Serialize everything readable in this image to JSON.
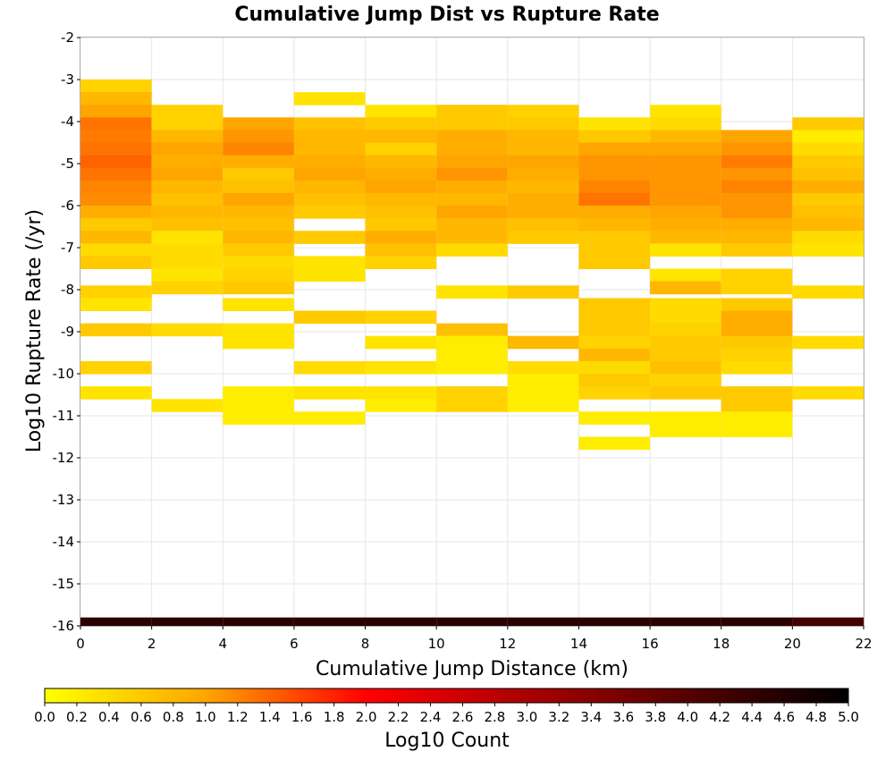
{
  "chart_data": {
    "type": "heatmap",
    "title": "Cumulative Jump Dist vs Rupture Rate",
    "xlabel": "Cumulative Jump Distance (km)",
    "ylabel": "Log10 Rupture Rate (/yr)",
    "xlim": [
      0,
      22
    ],
    "ylim": [
      -16,
      -2
    ],
    "x_ticks": [
      "0",
      "2",
      "4",
      "6",
      "8",
      "10",
      "12",
      "14",
      "16",
      "18",
      "20",
      "22"
    ],
    "y_ticks": [
      "-2",
      "-3",
      "-4",
      "-5",
      "-6",
      "-7",
      "-8",
      "-9",
      "-10",
      "-11",
      "-12",
      "-13",
      "-14",
      "-15",
      "-16"
    ],
    "x_bin_width": 2,
    "y_bin_height": 0.3,
    "grid": true,
    "colorbar": {
      "label": "Log10 Count",
      "range": [
        0,
        5
      ],
      "ticks": [
        "0.0",
        "0.2",
        "0.4",
        "0.6",
        "0.8",
        "1.0",
        "1.2",
        "1.4",
        "1.6",
        "1.8",
        "2.0",
        "2.2",
        "2.4",
        "2.6",
        "2.8",
        "3.0",
        "3.2",
        "3.4",
        "3.6",
        "3.8",
        "4.0",
        "4.2",
        "4.4",
        "4.6",
        "4.8",
        "5.0"
      ],
      "colormap": [
        "#ffff00",
        "#ffa500",
        "#ff0000",
        "#000000"
      ]
    },
    "cells": [
      {
        "x": 0,
        "y": -3.15,
        "v": 0.5
      },
      {
        "x": 0,
        "y": -3.45,
        "v": 0.8
      },
      {
        "x": 0,
        "y": -3.75,
        "v": 1.0
      },
      {
        "x": 0,
        "y": -4.05,
        "v": 1.3
      },
      {
        "x": 0,
        "y": -4.35,
        "v": 1.25
      },
      {
        "x": 0,
        "y": -4.65,
        "v": 1.3
      },
      {
        "x": 0,
        "y": -4.95,
        "v": 1.4
      },
      {
        "x": 0,
        "y": -5.25,
        "v": 1.3
      },
      {
        "x": 0,
        "y": -5.55,
        "v": 1.2
      },
      {
        "x": 0,
        "y": -5.85,
        "v": 1.15
      },
      {
        "x": 0,
        "y": -6.15,
        "v": 0.9
      },
      {
        "x": 0,
        "y": -6.45,
        "v": 0.6
      },
      {
        "x": 0,
        "y": -6.75,
        "v": 0.8
      },
      {
        "x": 0,
        "y": -7.05,
        "v": 0.4
      },
      {
        "x": 0,
        "y": -7.35,
        "v": 0.6
      },
      {
        "x": 0,
        "y": -8.05,
        "v": 0.5
      },
      {
        "x": 0,
        "y": -8.35,
        "v": 0.3
      },
      {
        "x": 0,
        "y": -8.95,
        "v": 0.6
      },
      {
        "x": 0,
        "y": -9.85,
        "v": 0.5
      },
      {
        "x": 0,
        "y": -10.45,
        "v": 0.3
      },
      {
        "x": 2,
        "y": -3.75,
        "v": 0.5
      },
      {
        "x": 2,
        "y": -4.05,
        "v": 0.5
      },
      {
        "x": 2,
        "y": -4.35,
        "v": 0.8
      },
      {
        "x": 2,
        "y": -4.65,
        "v": 1.0
      },
      {
        "x": 2,
        "y": -4.95,
        "v": 0.9
      },
      {
        "x": 2,
        "y": -5.25,
        "v": 1.0
      },
      {
        "x": 2,
        "y": -5.55,
        "v": 0.8
      },
      {
        "x": 2,
        "y": -5.85,
        "v": 0.7
      },
      {
        "x": 2,
        "y": -6.15,
        "v": 0.8
      },
      {
        "x": 2,
        "y": -6.45,
        "v": 0.7
      },
      {
        "x": 2,
        "y": -6.75,
        "v": 0.3
      },
      {
        "x": 2,
        "y": -7.05,
        "v": 0.4
      },
      {
        "x": 2,
        "y": -7.35,
        "v": 0.4
      },
      {
        "x": 2,
        "y": -7.65,
        "v": 0.3
      },
      {
        "x": 2,
        "y": -7.95,
        "v": 0.5
      },
      {
        "x": 2,
        "y": -8.95,
        "v": 0.4
      },
      {
        "x": 2,
        "y": -10.75,
        "v": 0.3
      },
      {
        "x": 4,
        "y": -4.05,
        "v": 1.0
      },
      {
        "x": 4,
        "y": -4.35,
        "v": 1.1
      },
      {
        "x": 4,
        "y": -4.65,
        "v": 1.2
      },
      {
        "x": 4,
        "y": -4.95,
        "v": 0.9
      },
      {
        "x": 4,
        "y": -5.25,
        "v": 0.6
      },
      {
        "x": 4,
        "y": -5.55,
        "v": 0.7
      },
      {
        "x": 4,
        "y": -5.85,
        "v": 1.0
      },
      {
        "x": 4,
        "y": -6.15,
        "v": 0.8
      },
      {
        "x": 4,
        "y": -6.45,
        "v": 0.7
      },
      {
        "x": 4,
        "y": -6.75,
        "v": 0.8
      },
      {
        "x": 4,
        "y": -7.05,
        "v": 0.6
      },
      {
        "x": 4,
        "y": -7.35,
        "v": 0.4
      },
      {
        "x": 4,
        "y": -7.65,
        "v": 0.5
      },
      {
        "x": 4,
        "y": -7.95,
        "v": 0.6
      },
      {
        "x": 4,
        "y": -8.35,
        "v": 0.3
      },
      {
        "x": 4,
        "y": -8.95,
        "v": 0.3
      },
      {
        "x": 4,
        "y": -9.25,
        "v": 0.3
      },
      {
        "x": 4,
        "y": -10.45,
        "v": 0.2
      },
      {
        "x": 4,
        "y": -10.75,
        "v": 0.2
      },
      {
        "x": 4,
        "y": -11.05,
        "v": 0.2
      },
      {
        "x": 6,
        "y": -3.45,
        "v": 0.3
      },
      {
        "x": 6,
        "y": -4.05,
        "v": 0.7
      },
      {
        "x": 6,
        "y": -4.35,
        "v": 0.8
      },
      {
        "x": 6,
        "y": -4.65,
        "v": 0.8
      },
      {
        "x": 6,
        "y": -4.95,
        "v": 0.9
      },
      {
        "x": 6,
        "y": -5.25,
        "v": 1.0
      },
      {
        "x": 6,
        "y": -5.55,
        "v": 0.8
      },
      {
        "x": 6,
        "y": -5.85,
        "v": 0.7
      },
      {
        "x": 6,
        "y": -6.15,
        "v": 0.6
      },
      {
        "x": 6,
        "y": -6.75,
        "v": 0.6
      },
      {
        "x": 6,
        "y": -7.35,
        "v": 0.3
      },
      {
        "x": 6,
        "y": -7.65,
        "v": 0.3
      },
      {
        "x": 6,
        "y": -8.65,
        "v": 0.6
      },
      {
        "x": 6,
        "y": -9.85,
        "v": 0.4
      },
      {
        "x": 6,
        "y": -10.45,
        "v": 0.3
      },
      {
        "x": 6,
        "y": -11.05,
        "v": 0.2
      },
      {
        "x": 8,
        "y": -3.75,
        "v": 0.3
      },
      {
        "x": 8,
        "y": -4.05,
        "v": 0.6
      },
      {
        "x": 8,
        "y": -4.35,
        "v": 0.8
      },
      {
        "x": 8,
        "y": -4.65,
        "v": 0.5
      },
      {
        "x": 8,
        "y": -4.95,
        "v": 0.8
      },
      {
        "x": 8,
        "y": -5.25,
        "v": 0.9
      },
      {
        "x": 8,
        "y": -5.55,
        "v": 1.0
      },
      {
        "x": 8,
        "y": -5.85,
        "v": 0.8
      },
      {
        "x": 8,
        "y": -6.15,
        "v": 0.7
      },
      {
        "x": 8,
        "y": -6.45,
        "v": 0.6
      },
      {
        "x": 8,
        "y": -6.75,
        "v": 0.9
      },
      {
        "x": 8,
        "y": -7.05,
        "v": 0.7
      },
      {
        "x": 8,
        "y": -7.35,
        "v": 0.5
      },
      {
        "x": 8,
        "y": -8.65,
        "v": 0.5
      },
      {
        "x": 8,
        "y": -9.25,
        "v": 0.3
      },
      {
        "x": 8,
        "y": -9.85,
        "v": 0.3
      },
      {
        "x": 8,
        "y": -10.45,
        "v": 0.3
      },
      {
        "x": 8,
        "y": -10.75,
        "v": 0.2
      },
      {
        "x": 10,
        "y": -3.75,
        "v": 0.6
      },
      {
        "x": 10,
        "y": -4.05,
        "v": 0.6
      },
      {
        "x": 10,
        "y": -4.35,
        "v": 0.9
      },
      {
        "x": 10,
        "y": -4.65,
        "v": 0.9
      },
      {
        "x": 10,
        "y": -4.95,
        "v": 1.0
      },
      {
        "x": 10,
        "y": -5.25,
        "v": 1.1
      },
      {
        "x": 10,
        "y": -5.55,
        "v": 0.9
      },
      {
        "x": 10,
        "y": -5.85,
        "v": 0.8
      },
      {
        "x": 10,
        "y": -6.15,
        "v": 1.0
      },
      {
        "x": 10,
        "y": -6.45,
        "v": 0.8
      },
      {
        "x": 10,
        "y": -6.75,
        "v": 0.8
      },
      {
        "x": 10,
        "y": -7.05,
        "v": 0.4
      },
      {
        "x": 10,
        "y": -8.05,
        "v": 0.3
      },
      {
        "x": 10,
        "y": -8.95,
        "v": 0.7
      },
      {
        "x": 10,
        "y": -9.25,
        "v": 0.2
      },
      {
        "x": 10,
        "y": -9.55,
        "v": 0.2
      },
      {
        "x": 10,
        "y": -9.85,
        "v": 0.2
      },
      {
        "x": 10,
        "y": -10.45,
        "v": 0.5
      },
      {
        "x": 10,
        "y": -10.75,
        "v": 0.5
      },
      {
        "x": 12,
        "y": -3.75,
        "v": 0.5
      },
      {
        "x": 12,
        "y": -4.05,
        "v": 0.6
      },
      {
        "x": 12,
        "y": -4.35,
        "v": 0.8
      },
      {
        "x": 12,
        "y": -4.65,
        "v": 0.8
      },
      {
        "x": 12,
        "y": -4.95,
        "v": 1.0
      },
      {
        "x": 12,
        "y": -5.25,
        "v": 0.9
      },
      {
        "x": 12,
        "y": -5.55,
        "v": 0.8
      },
      {
        "x": 12,
        "y": -5.85,
        "v": 0.9
      },
      {
        "x": 12,
        "y": -6.15,
        "v": 0.9
      },
      {
        "x": 12,
        "y": -6.45,
        "v": 0.7
      },
      {
        "x": 12,
        "y": -6.75,
        "v": 0.6
      },
      {
        "x": 12,
        "y": -8.05,
        "v": 0.6
      },
      {
        "x": 12,
        "y": -9.25,
        "v": 0.8
      },
      {
        "x": 12,
        "y": -9.85,
        "v": 0.4
      },
      {
        "x": 12,
        "y": -10.15,
        "v": 0.2
      },
      {
        "x": 12,
        "y": -10.45,
        "v": 0.2
      },
      {
        "x": 12,
        "y": -10.75,
        "v": 0.2
      },
      {
        "x": 14,
        "y": -4.05,
        "v": 0.3
      },
      {
        "x": 14,
        "y": -4.35,
        "v": 0.6
      },
      {
        "x": 14,
        "y": -4.65,
        "v": 1.0
      },
      {
        "x": 14,
        "y": -4.95,
        "v": 1.1
      },
      {
        "x": 14,
        "y": -5.25,
        "v": 1.1
      },
      {
        "x": 14,
        "y": -5.55,
        "v": 1.2
      },
      {
        "x": 14,
        "y": -5.85,
        "v": 1.3
      },
      {
        "x": 14,
        "y": -6.15,
        "v": 0.9
      },
      {
        "x": 14,
        "y": -6.45,
        "v": 0.8
      },
      {
        "x": 14,
        "y": -6.75,
        "v": 0.6
      },
      {
        "x": 14,
        "y": -7.05,
        "v": 0.6
      },
      {
        "x": 14,
        "y": -7.35,
        "v": 0.6
      },
      {
        "x": 14,
        "y": -8.35,
        "v": 0.6
      },
      {
        "x": 14,
        "y": -8.65,
        "v": 0.6
      },
      {
        "x": 14,
        "y": -8.95,
        "v": 0.6
      },
      {
        "x": 14,
        "y": -9.25,
        "v": 0.5
      },
      {
        "x": 14,
        "y": -9.55,
        "v": 0.8
      },
      {
        "x": 14,
        "y": -9.85,
        "v": 0.4
      },
      {
        "x": 14,
        "y": -10.15,
        "v": 0.6
      },
      {
        "x": 14,
        "y": -10.45,
        "v": 0.5
      },
      {
        "x": 14,
        "y": -11.05,
        "v": 0.2
      },
      {
        "x": 14,
        "y": -11.65,
        "v": 0.2
      },
      {
        "x": 16,
        "y": -3.75,
        "v": 0.3
      },
      {
        "x": 16,
        "y": -4.05,
        "v": 0.4
      },
      {
        "x": 16,
        "y": -4.35,
        "v": 0.8
      },
      {
        "x": 16,
        "y": -4.65,
        "v": 1.0
      },
      {
        "x": 16,
        "y": -4.95,
        "v": 1.1
      },
      {
        "x": 16,
        "y": -5.25,
        "v": 1.1
      },
      {
        "x": 16,
        "y": -5.55,
        "v": 1.1
      },
      {
        "x": 16,
        "y": -5.85,
        "v": 1.1
      },
      {
        "x": 16,
        "y": -6.15,
        "v": 1.0
      },
      {
        "x": 16,
        "y": -6.45,
        "v": 0.9
      },
      {
        "x": 16,
        "y": -6.75,
        "v": 0.8
      },
      {
        "x": 16,
        "y": -7.05,
        "v": 0.3
      },
      {
        "x": 16,
        "y": -7.65,
        "v": 0.3
      },
      {
        "x": 16,
        "y": -7.95,
        "v": 0.8
      },
      {
        "x": 16,
        "y": -8.35,
        "v": 0.4
      },
      {
        "x": 16,
        "y": -8.65,
        "v": 0.4
      },
      {
        "x": 16,
        "y": -8.95,
        "v": 0.5
      },
      {
        "x": 16,
        "y": -9.25,
        "v": 0.6
      },
      {
        "x": 16,
        "y": -9.55,
        "v": 0.6
      },
      {
        "x": 16,
        "y": -9.85,
        "v": 0.7
      },
      {
        "x": 16,
        "y": -10.15,
        "v": 0.5
      },
      {
        "x": 16,
        "y": -10.45,
        "v": 0.6
      },
      {
        "x": 16,
        "y": -11.05,
        "v": 0.2
      },
      {
        "x": 16,
        "y": -11.35,
        "v": 0.2
      },
      {
        "x": 18,
        "y": -4.35,
        "v": 1.0
      },
      {
        "x": 18,
        "y": -4.65,
        "v": 1.1
      },
      {
        "x": 18,
        "y": -4.95,
        "v": 1.25
      },
      {
        "x": 18,
        "y": -5.25,
        "v": 1.1
      },
      {
        "x": 18,
        "y": -5.55,
        "v": 1.2
      },
      {
        "x": 18,
        "y": -5.85,
        "v": 1.1
      },
      {
        "x": 18,
        "y": -6.15,
        "v": 1.1
      },
      {
        "x": 18,
        "y": -6.45,
        "v": 0.9
      },
      {
        "x": 18,
        "y": -6.75,
        "v": 0.8
      },
      {
        "x": 18,
        "y": -7.05,
        "v": 0.6
      },
      {
        "x": 18,
        "y": -7.65,
        "v": 0.5
      },
      {
        "x": 18,
        "y": -7.95,
        "v": 0.5
      },
      {
        "x": 18,
        "y": -8.35,
        "v": 0.6
      },
      {
        "x": 18,
        "y": -8.65,
        "v": 0.9
      },
      {
        "x": 18,
        "y": -8.95,
        "v": 0.9
      },
      {
        "x": 18,
        "y": -9.25,
        "v": 0.6
      },
      {
        "x": 18,
        "y": -9.55,
        "v": 0.5
      },
      {
        "x": 18,
        "y": -9.85,
        "v": 0.4
      },
      {
        "x": 18,
        "y": -10.45,
        "v": 0.6
      },
      {
        "x": 18,
        "y": -10.75,
        "v": 0.6
      },
      {
        "x": 18,
        "y": -11.05,
        "v": 0.2
      },
      {
        "x": 18,
        "y": -11.35,
        "v": 0.2
      },
      {
        "x": 20,
        "y": -4.05,
        "v": 0.6
      },
      {
        "x": 20,
        "y": -4.35,
        "v": 0.2
      },
      {
        "x": 20,
        "y": -4.65,
        "v": 0.4
      },
      {
        "x": 20,
        "y": -4.95,
        "v": 0.6
      },
      {
        "x": 20,
        "y": -5.25,
        "v": 0.7
      },
      {
        "x": 20,
        "y": -5.55,
        "v": 0.9
      },
      {
        "x": 20,
        "y": -5.85,
        "v": 0.6
      },
      {
        "x": 20,
        "y": -6.15,
        "v": 0.7
      },
      {
        "x": 20,
        "y": -6.45,
        "v": 0.8
      },
      {
        "x": 20,
        "y": -6.75,
        "v": 0.4
      },
      {
        "x": 20,
        "y": -7.05,
        "v": 0.3
      },
      {
        "x": 20,
        "y": -8.05,
        "v": 0.4
      },
      {
        "x": 20,
        "y": -9.25,
        "v": 0.4
      },
      {
        "x": 20,
        "y": -10.45,
        "v": 0.4
      }
    ],
    "bottom_row": {
      "y": -15.95,
      "values": [
        4.5,
        4.5,
        4.5,
        4.5,
        4.5,
        4.5,
        4.5,
        4.5,
        4.5,
        4.5,
        4.2
      ]
    }
  }
}
